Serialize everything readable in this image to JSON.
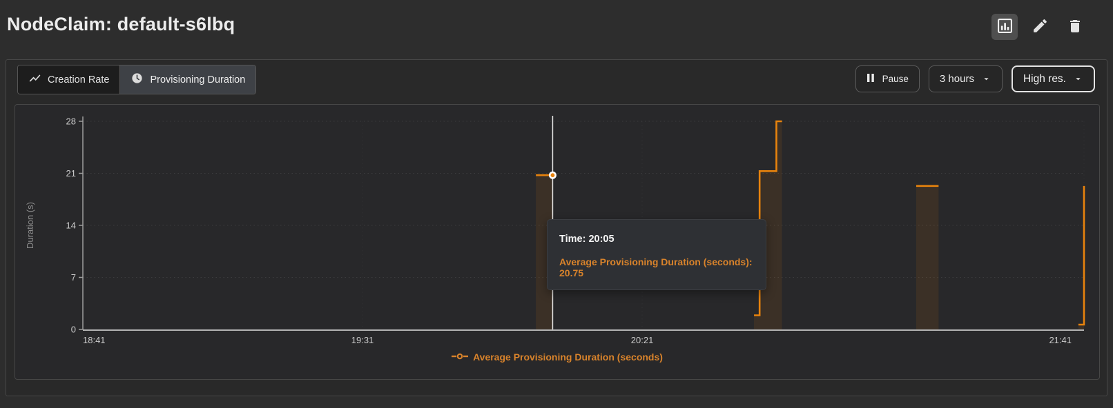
{
  "header": {
    "title": "NodeClaim: default-s6lbq"
  },
  "toolbar": {
    "tabs": [
      {
        "label": "Creation Rate",
        "icon": "trend-line-icon",
        "selected": false
      },
      {
        "label": "Provisioning Duration",
        "icon": "clock-icon",
        "selected": true
      }
    ],
    "pause_label": "Pause",
    "range_label": "3 hours",
    "resolution_label": "High res."
  },
  "tooltip": {
    "time": "Time: 20:05",
    "value": "Average Provisioning Duration (seconds): 20.75"
  },
  "legend": {
    "label": "Average Provisioning Duration (seconds)"
  },
  "colors": {
    "series_orange": "#e8830d",
    "label_orange": "#d9832b",
    "background": "#2d2d2d"
  },
  "chart_data": {
    "type": "line",
    "line_style": "step-after",
    "title": "",
    "xlabel": "",
    "ylabel": "Duration (s)",
    "xlim": [
      "18:41",
      "21:40"
    ],
    "ylim": [
      0,
      28
    ],
    "yticks": [
      0,
      7,
      14,
      21,
      28
    ],
    "xticks": [
      "18:41",
      "19:31",
      "20:21",
      "21:41"
    ],
    "grid": true,
    "legend_position": "bottom",
    "series": [
      {
        "name": "Average Provisioning Duration (seconds)",
        "color": "#e8830d",
        "segments": [
          [
            [
              "20:02",
              20.75
            ],
            [
              "20:05",
              20.75
            ]
          ],
          [
            [
              "20:41",
              1.9
            ],
            [
              "20:42",
              21.3
            ],
            [
              "20:45",
              28
            ],
            [
              "20:46",
              28
            ]
          ],
          [
            [
              "21:10",
              19.3
            ],
            [
              "21:14",
              19.3
            ]
          ],
          [
            [
              "21:39",
              0.65
            ],
            [
              "21:40",
              19.3
            ]
          ]
        ]
      }
    ],
    "crosshair": {
      "x": "20:05",
      "y": 20.75
    }
  }
}
